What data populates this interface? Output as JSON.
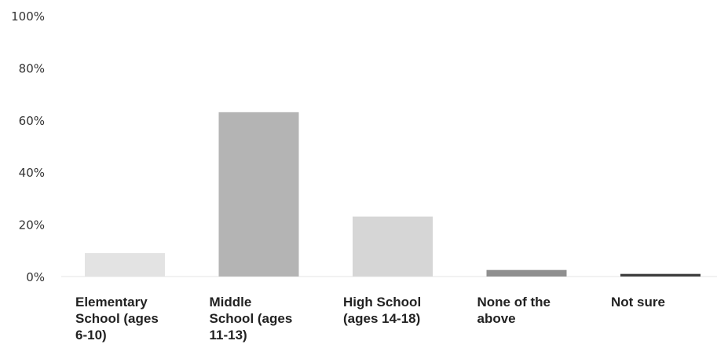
{
  "chart_data": {
    "type": "bar",
    "categories": [
      [
        "Elementary",
        "School (ages",
        "6-10)"
      ],
      [
        "Middle",
        "School (ages",
        "11-13)"
      ],
      [
        "High School",
        "(ages 14-18)"
      ],
      [
        "None of the",
        "above"
      ],
      [
        "Not sure"
      ]
    ],
    "values": [
      9,
      63,
      23,
      2.5,
      1
    ],
    "bar_colors": [
      "#e3e3e3",
      "#b4b4b4",
      "#d6d6d6",
      "#8f8f8f",
      "#3e3e3e"
    ],
    "yticks": [
      "0%",
      "20%",
      "40%",
      "60%",
      "80%",
      "100%"
    ],
    "ylim": [
      0,
      100
    ],
    "grid": false,
    "legend": "none"
  }
}
